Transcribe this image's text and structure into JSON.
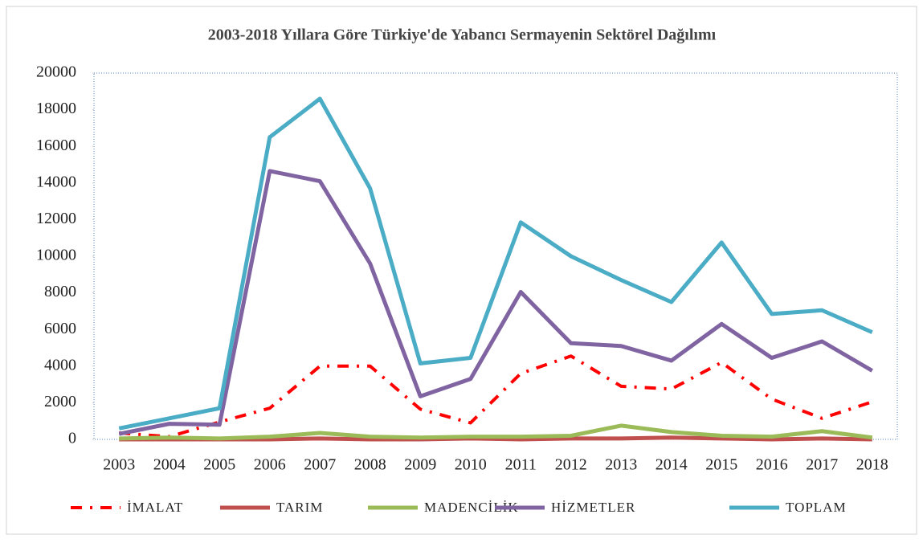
{
  "chart_data": {
    "type": "line",
    "title": "2003-2018 Yıllara Göre  Türkiye'de Yabancı Sermayenin Sektörel Dağılımı",
    "categories": [
      "2003",
      "2004",
      "2005",
      "2006",
      "2007",
      "2008",
      "2009",
      "2010",
      "2011",
      "2012",
      "2013",
      "2014",
      "2015",
      "2016",
      "2017",
      "2018"
    ],
    "series": [
      {
        "name": "İMALAT",
        "color": "#ff0000",
        "dash": "dash-dot",
        "values": [
          350,
          150,
          950,
          1700,
          4000,
          4000,
          1650,
          900,
          3600,
          4550,
          2900,
          2750,
          4200,
          2200,
          1150,
          2050
        ]
      },
      {
        "name": "TARIM",
        "color": "#c0504d",
        "values": [
          0,
          0,
          0,
          0,
          50,
          0,
          0,
          50,
          0,
          50,
          50,
          100,
          50,
          0,
          50,
          0
        ]
      },
      {
        "name": "MADENCİLİK",
        "color": "#9bbb59",
        "values": [
          50,
          100,
          50,
          150,
          350,
          150,
          100,
          150,
          150,
          200,
          750,
          400,
          200,
          150,
          450,
          100
        ]
      },
      {
        "name": "HİZMETLER",
        "color": "#8064a2",
        "values": [
          300,
          850,
          800,
          14650,
          14100,
          9600,
          2350,
          3300,
          8050,
          5250,
          5100,
          4300,
          6300,
          4450,
          5350,
          3750
        ]
      },
      {
        "name": "TOPLAM",
        "color": "#4bacc6",
        "values": [
          600,
          1150,
          1700,
          16500,
          18600,
          13700,
          4150,
          4450,
          11850,
          10000,
          8700,
          7500,
          10750,
          6850,
          7050,
          5850
        ]
      }
    ],
    "ylim": [
      0,
      20000
    ],
    "yticks": [
      0,
      2000,
      4000,
      6000,
      8000,
      10000,
      12000,
      14000,
      16000,
      18000,
      20000
    ],
    "legend": "bottom"
  }
}
